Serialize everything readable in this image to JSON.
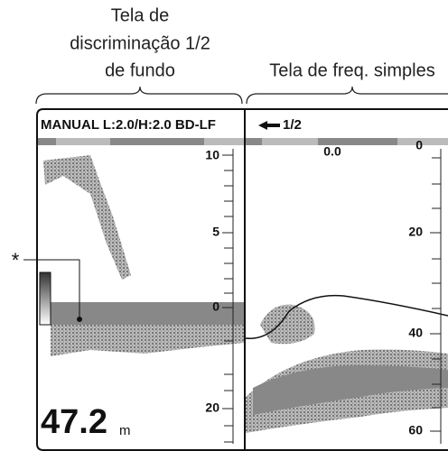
{
  "captions": {
    "left": [
      "Tela de",
      "discriminação 1/2",
      "de fundo"
    ],
    "right": "Tela de freq. simples"
  },
  "header": {
    "mode": "MANUAL L:2.0/H:2.0 BD-LF",
    "ratio": "1/2"
  },
  "left_panel": {
    "scale": [
      "10",
      "5",
      "0",
      "20"
    ],
    "marker": "*",
    "depth": "47.2",
    "unit": "m"
  },
  "right_panel": {
    "offset": "0.0",
    "scale": [
      "0",
      "20",
      "40",
      "60"
    ]
  }
}
